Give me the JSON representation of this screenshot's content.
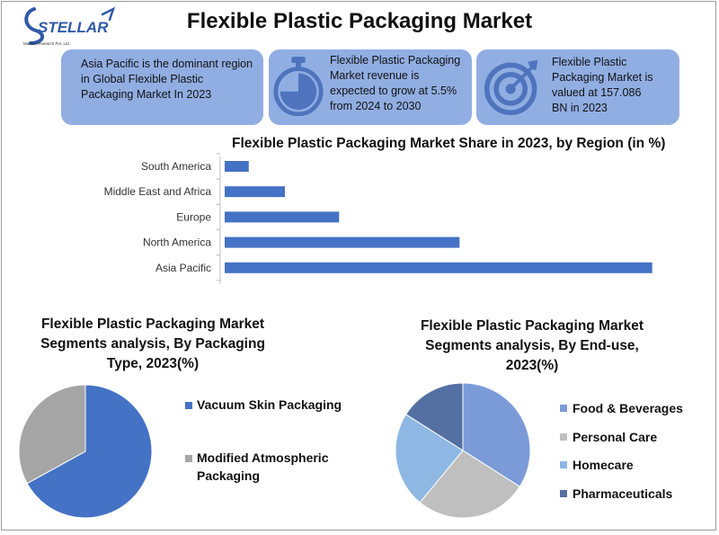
{
  "header": {
    "logo_text": "STELLAR",
    "logo_subtext": "Market Research Pvt. Ltd.",
    "title": "Flexible Plastic Packaging Market"
  },
  "cards": [
    {
      "text": "Asia Pacific is the dominant region in Global Flexible Plastic Packaging Market In 2023",
      "icon": "none"
    },
    {
      "text": "Flexible Plastic Packaging Market revenue is expected to grow at 5.5% from 2024 to 2030",
      "icon": "stopwatch-icon"
    },
    {
      "text": "Flexible Plastic Packaging Market is valued at 157.086 BN in 2023",
      "icon": "target-icon"
    }
  ],
  "colors": {
    "card_bg": "#91aee3",
    "bar": "#4472c4",
    "pie_blue": "#4472c4",
    "pie_gray": "#a5a5a5"
  },
  "chart_data": [
    {
      "type": "bar",
      "orientation": "horizontal",
      "title": "Flexible Plastic Packaging  Market Share in 2023, by Region (in %)",
      "categories": [
        "South America",
        "Middle East and Africa",
        "Europe",
        "North America",
        "Asia Pacific"
      ],
      "values": [
        4,
        10,
        19,
        39,
        71
      ],
      "xlim": [
        0,
        100
      ],
      "grid": false,
      "legend": "none"
    },
    {
      "type": "pie",
      "title": "Flexible Plastic Packaging  Market Segments analysis, By Packaging Type, 2023(%)",
      "labels": [
        "Vacuum Skin Packaging",
        "Modified Atmospheric Packaging"
      ],
      "legend_labels": [
        "Vacuum Skin Packaging",
        "Modified Atmospheric",
        "Packaging"
      ],
      "values": [
        67,
        33
      ],
      "colors": [
        "#4472c4",
        "#a5a5a5"
      ],
      "legend": "right"
    },
    {
      "type": "pie",
      "title": "Flexible Plastic Packaging  Market Segments analysis, By End-use, 2023(%)",
      "labels": [
        "Food & Beverages",
        "Personal Care",
        "Homecare",
        "Pharmaceuticals"
      ],
      "values": [
        34,
        27,
        23,
        16
      ],
      "colors": [
        "#7b9bd8",
        "#bfbfbf",
        "#8eb7e3",
        "#5470a3"
      ],
      "legend": "right"
    }
  ]
}
